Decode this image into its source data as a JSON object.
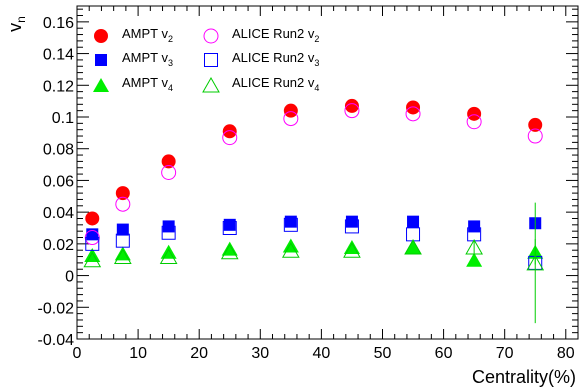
{
  "chart_data": {
    "type": "scatter",
    "xlabel": "Centrality(%)",
    "ylabel": "v",
    "ylabel_sub": "n",
    "xlim": [
      0,
      82
    ],
    "ylim": [
      -0.04,
      0.17
    ],
    "x_ticks": [
      "0",
      "10",
      "20",
      "30",
      "40",
      "50",
      "60",
      "70",
      "80"
    ],
    "y_ticks": [
      "-0.04",
      "-0.02",
      "0",
      "0.02",
      "0.04",
      "0.06",
      "0.08",
      "0.1",
      "0.12",
      "0.14",
      "0.16"
    ],
    "grid": false,
    "legend_position": "top-left, two columns",
    "series": [
      {
        "name": "AMPT v",
        "sub": "2",
        "marker": "filled-circle",
        "color": "#ff0000",
        "x": [
          2.5,
          7.5,
          15,
          25,
          35,
          45,
          55,
          65,
          75
        ],
        "y": [
          0.036,
          0.052,
          0.072,
          0.091,
          0.104,
          0.107,
          0.106,
          0.102,
          0.095
        ]
      },
      {
        "name": "AMPT v",
        "sub": "3",
        "marker": "filled-square",
        "color": "#0000ff",
        "x": [
          2.5,
          7.5,
          15,
          25,
          35,
          45,
          55,
          65,
          75
        ],
        "y": [
          0.026,
          0.029,
          0.031,
          0.032,
          0.034,
          0.034,
          0.034,
          0.031,
          0.033
        ]
      },
      {
        "name": "AMPT v",
        "sub": "4",
        "marker": "filled-triangle",
        "color": "#00ee00",
        "x": [
          2.5,
          7.5,
          15,
          25,
          35,
          45,
          55,
          65,
          75
        ],
        "y": [
          0.013,
          0.014,
          0.015,
          0.017,
          0.019,
          0.018,
          0.018,
          0.01,
          0.015
        ],
        "yerr": [
          0,
          0,
          0,
          0,
          0,
          0,
          0,
          0.004,
          0.008
        ]
      },
      {
        "name": "ALICE Run2 v",
        "sub": "2",
        "marker": "open-circle",
        "color": "#ff00ff",
        "x": [
          2.5,
          7.5,
          15,
          25,
          35,
          45,
          55,
          65,
          75
        ],
        "y": [
          0.024,
          0.045,
          0.065,
          0.087,
          0.099,
          0.104,
          0.102,
          0.097,
          0.088
        ]
      },
      {
        "name": "ALICE Run2 v",
        "sub": "3",
        "marker": "open-square",
        "color": "#0000ff",
        "x": [
          2.5,
          7.5,
          15,
          25,
          35,
          45,
          55,
          65,
          75
        ],
        "y": [
          0.02,
          0.022,
          0.027,
          0.03,
          0.032,
          0.031,
          0.026,
          0.026,
          0.008
        ]
      },
      {
        "name": "ALICE Run2 v",
        "sub": "4",
        "marker": "open-triangle",
        "color": "#00cc00",
        "x": [
          2.5,
          7.5,
          15,
          25,
          35,
          45,
          55,
          65,
          75
        ],
        "y": [
          0.01,
          0.012,
          0.012,
          0.015,
          0.016,
          0.016,
          0.018,
          0.018,
          0.008
        ],
        "yerr": [
          0,
          0,
          0,
          0,
          0,
          0,
          0,
          0.004,
          0.038
        ]
      }
    ]
  }
}
